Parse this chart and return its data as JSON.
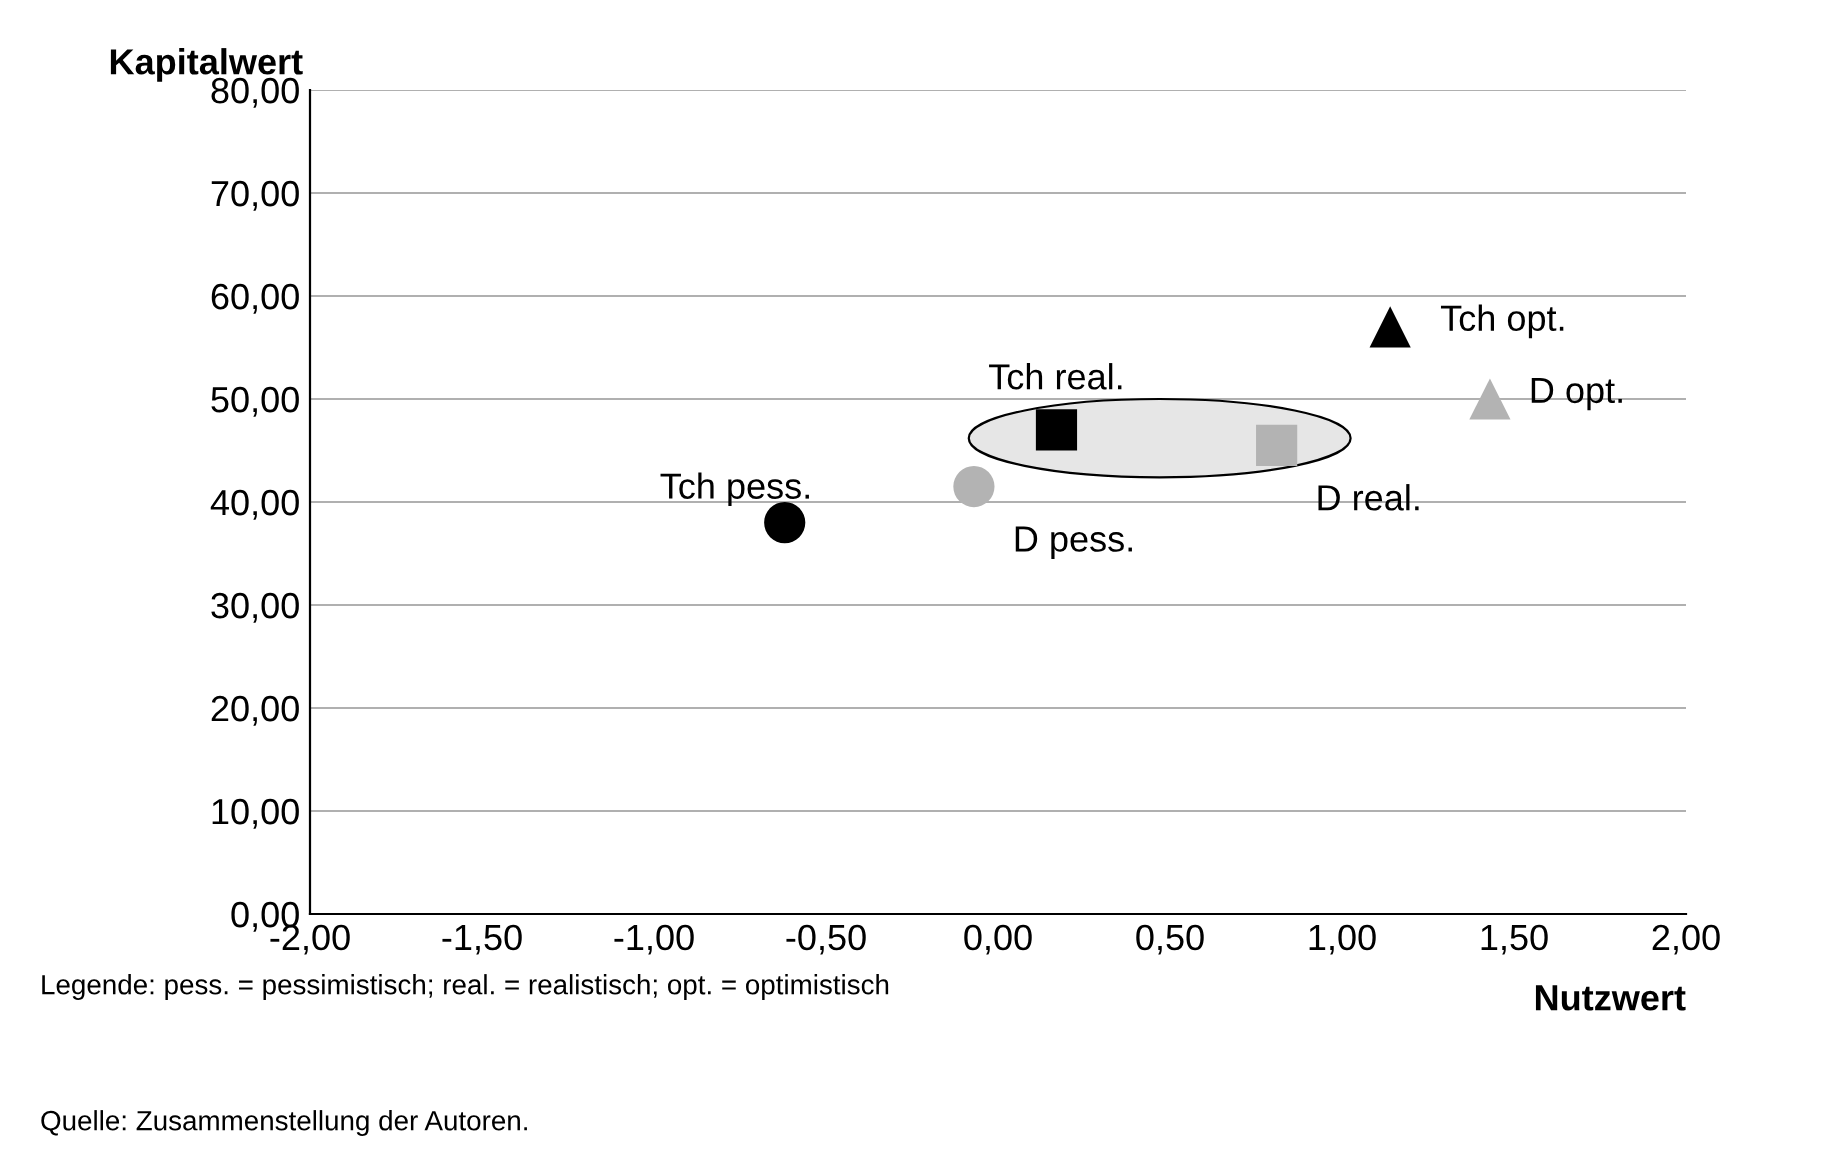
{
  "chart_data": {
    "type": "scatter",
    "xlabel": "Nutzwert",
    "ylabel": "Kapitalwert",
    "xlim": [
      -2,
      2
    ],
    "ylim": [
      0,
      80
    ],
    "xticks": [
      {
        "value": -2,
        "label": "-2,00"
      },
      {
        "value": -1.5,
        "label": "-1,50"
      },
      {
        "value": -1,
        "label": "-1,00"
      },
      {
        "value": -0.5,
        "label": "-0,50"
      },
      {
        "value": 0,
        "label": "0,00"
      },
      {
        "value": 0.5,
        "label": "0,50"
      },
      {
        "value": 1,
        "label": "1,00"
      },
      {
        "value": 1.5,
        "label": "1,50"
      },
      {
        "value": 2,
        "label": "2,00"
      }
    ],
    "yticks": [
      {
        "value": 0,
        "label": "0,00"
      },
      {
        "value": 10,
        "label": "10,00"
      },
      {
        "value": 20,
        "label": "20,00"
      },
      {
        "value": 30,
        "label": "30,00"
      },
      {
        "value": 40,
        "label": "40,00"
      },
      {
        "value": 50,
        "label": "50,00"
      },
      {
        "value": 60,
        "label": "60,00"
      },
      {
        "value": 70,
        "label": "70,00"
      },
      {
        "value": 80,
        "label": "80,00"
      }
    ],
    "grid": "y",
    "legend": false,
    "series": [
      {
        "name": "Tch pess.",
        "color": "#000000",
        "marker": "circle",
        "x": [
          -0.62
        ],
        "values": [
          38
        ]
      },
      {
        "name": "D pess.",
        "color": "#b3b3b3",
        "marker": "circle",
        "x": [
          -0.07
        ],
        "values": [
          41.5
        ]
      },
      {
        "name": "Tch real.",
        "color": "#000000",
        "marker": "square",
        "x": [
          0.17
        ],
        "values": [
          47
        ]
      },
      {
        "name": "D real.",
        "color": "#b3b3b3",
        "marker": "square",
        "x": [
          0.81
        ],
        "values": [
          45.5
        ]
      },
      {
        "name": "Tch opt.",
        "color": "#000000",
        "marker": "triangle",
        "x": [
          1.14
        ],
        "values": [
          57
        ]
      },
      {
        "name": "D opt.",
        "color": "#b3b3b3",
        "marker": "triangle",
        "x": [
          1.43
        ],
        "values": [
          50
        ]
      }
    ],
    "annotations": [
      "Legende: pess. = pessimistisch; real. = realistisch; opt. = optimistisch",
      "Quelle: Zusammenstellung der Autoren."
    ]
  }
}
